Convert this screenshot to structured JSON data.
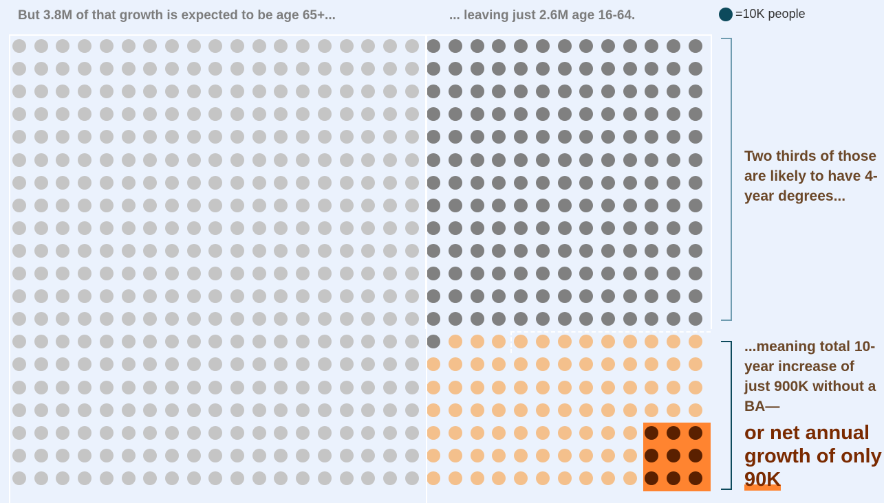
{
  "header": {
    "left": "But 3.8M of that growth is expected to be age 65+...",
    "right": "... leaving just 2.6M age 16-64."
  },
  "legend": {
    "label": "=10K people",
    "dot_color": "#0d4a5c"
  },
  "notes": {
    "top": "Two thirds of those are likely to have 4-year degrees...",
    "bottom": "...meaning total 10-year increase of just 900K without a BA—",
    "big_prefix": "or net annual growth of only",
    "big_highlight": "90K"
  },
  "colors": {
    "age_65_plus": "#c5c5c5",
    "age_16_64_degree": "#808080",
    "age_16_64_no_ba": "#f4c08c",
    "annual_no_ba": "#5a2000",
    "annual_box": "#ff8430"
  },
  "dot_counts": {
    "age_65_plus": 380,
    "age_16_64_degree": 170,
    "age_16_64_no_ba": 90,
    "annual_no_ba": 9
  }
}
